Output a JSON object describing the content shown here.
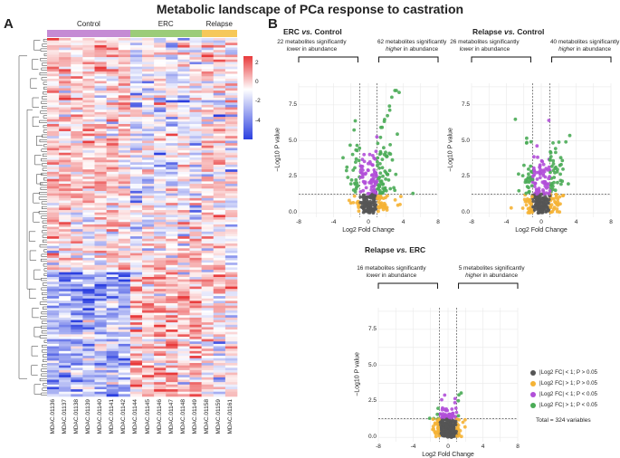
{
  "figure": {
    "title": "Metabolic landscape of PCa response to castration",
    "panel_a_label": "A",
    "panel_b_label": "B"
  },
  "heatmap": {
    "groups": [
      {
        "name": "Control",
        "color": "#c58bd4"
      },
      {
        "name": "ERC",
        "color": "#9ccc79"
      },
      {
        "name": "Relapse",
        "color": "#f6c85a"
      }
    ],
    "samples": [
      "MDAC.01136",
      "MDAC.01137",
      "MDAC.01138",
      "MDAC.01139",
      "MDAC.01140",
      "MDAC.01141",
      "MDAC.01142",
      "MDAC.01144",
      "MDAC.01145",
      "MDAC.01146",
      "MDAC.01147",
      "MDAC.01148",
      "MDAC.01149",
      "MDAC.01158",
      "MDAC.01159",
      "MDAC.01161"
    ],
    "colorbar_ticks": [
      "2",
      "0",
      "-2",
      "-4"
    ],
    "colors": {
      "high": "#e8393a",
      "mid": "#ffffff",
      "low": "#2b3fe0"
    }
  },
  "volcano_common": {
    "x_label": "Log2 Fold Change",
    "y_label": "−Log10 P value",
    "x_ticks": [
      "-8",
      "-4",
      "0",
      "4",
      "8"
    ],
    "y_ticks": [
      "0.0",
      "2.5",
      "5.0",
      "7.5"
    ],
    "bracket_lower_suffix": "in abundance",
    "bracket_higher_suffix": "in abundance",
    "word_lower": "lower",
    "word_higher": "higher"
  },
  "volcano_plots": [
    {
      "title_a": "ERC",
      "title_vs": "vs.",
      "title_b": "Control",
      "lower_text": "22 metabolites significantly",
      "higher_text": "62 metabolites significantly"
    },
    {
      "title_a": "Relapse",
      "title_vs": "vs.",
      "title_b": "Control",
      "lower_text": "26 metabolites significantly",
      "higher_text": "40 metabolites significantly"
    },
    {
      "title_a": "Relapse",
      "title_vs": "vs.",
      "title_b": "ERC",
      "lower_text": "16 metabolites significantly",
      "higher_text": "5 metabolites significantly"
    }
  ],
  "legend": {
    "items": [
      {
        "label": "|Log2 FC| < 1; P > 0.05",
        "color": "#555555"
      },
      {
        "label": "|Log2 FC| > 1; P > 0.05",
        "color": "#f5b335"
      },
      {
        "label": "|Log2 FC| < 1; P < 0.05",
        "color": "#b14fd8"
      },
      {
        "label": "|Log2 FC| > 1; P < 0.05",
        "color": "#4aab56"
      }
    ],
    "total": "Total = 324 variables"
  }
}
